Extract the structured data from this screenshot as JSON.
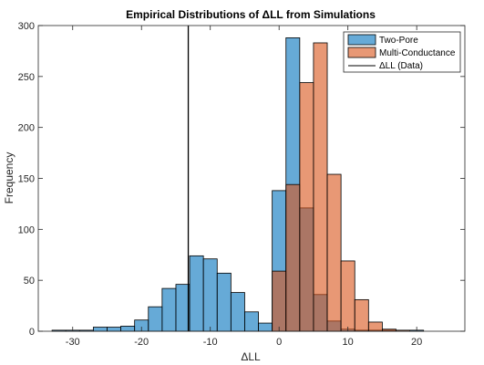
{
  "chart_data": {
    "type": "histogram",
    "title": "Empirical Distributions of ΔLL from Simulations",
    "xlabel": "ΔLL",
    "ylabel": "Frequency",
    "xlim": [
      -35,
      27
    ],
    "ylim": [
      0,
      300
    ],
    "xticks": [
      -30,
      -20,
      -10,
      0,
      10,
      20
    ],
    "yticks": [
      0,
      50,
      100,
      150,
      200,
      250,
      300
    ],
    "grid": false,
    "legend_position": "top-right",
    "vertical_line": {
      "name": "ΔLL (Data)",
      "x": -13.2,
      "color": "#000000"
    },
    "series": [
      {
        "name": "Two-Pore",
        "color": "#0072BD",
        "bins": [
          {
            "x0": -33,
            "x1": -31,
            "count": 1
          },
          {
            "x0": -31,
            "x1": -29,
            "count": 1
          },
          {
            "x0": -29,
            "x1": -27,
            "count": 1
          },
          {
            "x0": -27,
            "x1": -25,
            "count": 4
          },
          {
            "x0": -25,
            "x1": -23,
            "count": 4
          },
          {
            "x0": -23,
            "x1": -21,
            "count": 5
          },
          {
            "x0": -21,
            "x1": -19,
            "count": 11
          },
          {
            "x0": -19,
            "x1": -17,
            "count": 24
          },
          {
            "x0": -17,
            "x1": -15,
            "count": 42
          },
          {
            "x0": -15,
            "x1": -13,
            "count": 46
          },
          {
            "x0": -13,
            "x1": -11,
            "count": 74
          },
          {
            "x0": -11,
            "x1": -9,
            "count": 71
          },
          {
            "x0": -9,
            "x1": -7,
            "count": 57
          },
          {
            "x0": -7,
            "x1": -5,
            "count": 38
          },
          {
            "x0": -5,
            "x1": -3,
            "count": 19
          },
          {
            "x0": -3,
            "x1": -1,
            "count": 8
          },
          {
            "x0": -1,
            "x1": 1,
            "count": 138
          },
          {
            "x0": 1,
            "x1": 3,
            "count": 288
          },
          {
            "x0": 3,
            "x1": 5,
            "count": 121
          },
          {
            "x0": 5,
            "x1": 7,
            "count": 36
          },
          {
            "x0": 7,
            "x1": 9,
            "count": 10
          },
          {
            "x0": 9,
            "x1": 11,
            "count": 2
          },
          {
            "x0": 11,
            "x1": 13,
            "count": 1
          },
          {
            "x0": 13,
            "x1": 15,
            "count": 1
          },
          {
            "x0": 15,
            "x1": 17,
            "count": 1
          },
          {
            "x0": 17,
            "x1": 19,
            "count": 0
          },
          {
            "x0": 19,
            "x1": 21,
            "count": 1
          }
        ]
      },
      {
        "name": "Multi-Conductance",
        "color": "#D95319",
        "bins": [
          {
            "x0": -1,
            "x1": 1,
            "count": 59
          },
          {
            "x0": 1,
            "x1": 3,
            "count": 144
          },
          {
            "x0": 3,
            "x1": 5,
            "count": 244
          },
          {
            "x0": 5,
            "x1": 7,
            "count": 283
          },
          {
            "x0": 7,
            "x1": 9,
            "count": 154
          },
          {
            "x0": 9,
            "x1": 11,
            "count": 69
          },
          {
            "x0": 11,
            "x1": 13,
            "count": 31
          },
          {
            "x0": 13,
            "x1": 15,
            "count": 9
          },
          {
            "x0": 15,
            "x1": 17,
            "count": 2
          },
          {
            "x0": 17,
            "x1": 19,
            "count": 1
          }
        ]
      }
    ]
  }
}
